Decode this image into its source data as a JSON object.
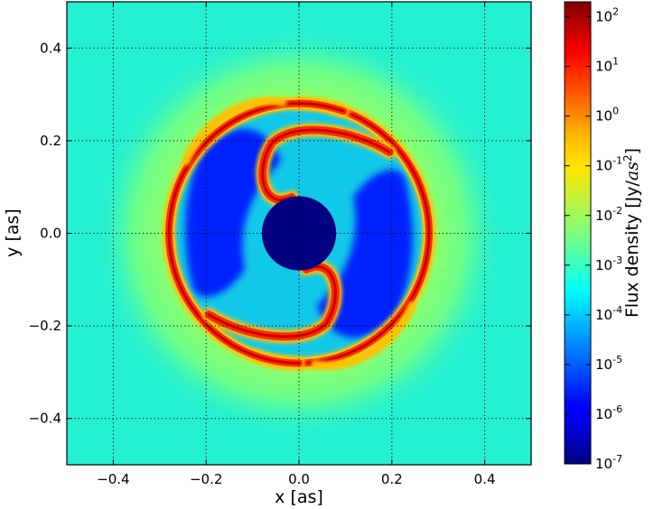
{
  "chart_data": {
    "type": "heatmap",
    "title": "",
    "xlabel": "x [as]",
    "ylabel": "y [as]",
    "xlim": [
      -0.5,
      0.5
    ],
    "ylim": [
      -0.5,
      0.5
    ],
    "x_ticks": [
      -0.4,
      -0.2,
      0.0,
      0.2,
      0.4
    ],
    "y_ticks": [
      -0.4,
      -0.2,
      0.0,
      0.2,
      0.4
    ],
    "x_tick_labels": [
      "−0.4",
      "−0.2",
      "0.0",
      "0.2",
      "0.4"
    ],
    "y_tick_labels": [
      "−0.4",
      "−0.2",
      "0.0",
      "0.2",
      "0.4"
    ],
    "grid": true,
    "grid_style": "dotted",
    "colormap": "jet",
    "colorbar": {
      "label_text": "Flux density [Jy/",
      "label_unit": "as",
      "label_power": "2",
      "label_close": "]",
      "scale": "log",
      "range": [
        1e-07,
        200
      ],
      "ticks": [
        {
          "value": 1e-07,
          "base": "10",
          "exp": "-7"
        },
        {
          "value": 1e-06,
          "base": "10",
          "exp": "-6"
        },
        {
          "value": 1e-05,
          "base": "10",
          "exp": "-5"
        },
        {
          "value": 0.0001,
          "base": "10",
          "exp": "-4"
        },
        {
          "value": 0.001,
          "base": "10",
          "exp": "-3"
        },
        {
          "value": 0.01,
          "base": "10",
          "exp": "-2"
        },
        {
          "value": 0.1,
          "base": "10",
          "exp": "-1"
        },
        {
          "value": 1,
          "base": "10",
          "exp": "0"
        },
        {
          "value": 10,
          "base": "10",
          "exp": "1"
        },
        {
          "value": 100,
          "base": "10",
          "exp": "2"
        }
      ]
    },
    "features": {
      "background_flux": 0.001,
      "outer_halo_flux": 0.01,
      "outer_halo_radius": 0.33,
      "occulter_radius": 0.08,
      "inner_spiral_arm_flux": 100,
      "outer_ring_flux": 100,
      "outer_ring_radius": 0.28,
      "dark_lobe_flux": 1e-06,
      "inner_region_flux": 0.0001
    },
    "colors": {
      "background": "#24f0d2",
      "outer_halo": "#c8ff37",
      "ring": "#ff2d00",
      "ring_core": "#c80000",
      "ring_glow": "#ffbf00",
      "inner_region": "#12c8e8",
      "dark_lobe": "#0020ff",
      "occulter": "#000080"
    }
  }
}
